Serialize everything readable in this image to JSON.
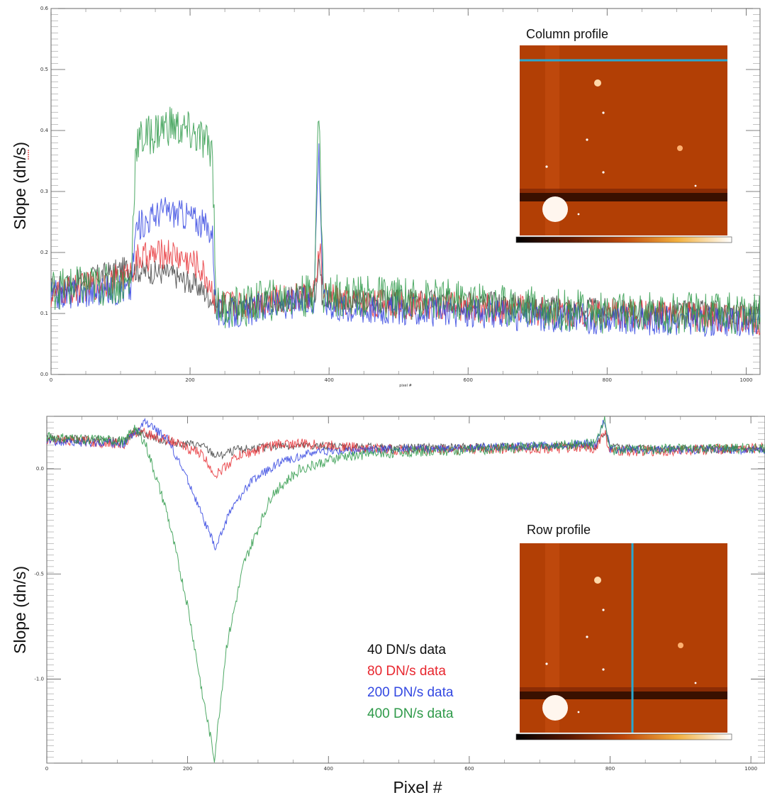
{
  "chart_data": [
    {
      "type": "line",
      "panel": "top",
      "xlabel": "pixel #",
      "ylabel": "Slope (dn/s)",
      "xlim": [
        0,
        1020
      ],
      "ylim": [
        0.0,
        0.6
      ],
      "x_ticks": [
        "0",
        "200",
        "400",
        "600",
        "800",
        "1000"
      ],
      "y_ticks": [
        "0.0",
        "0.1",
        "0.2",
        "0.3",
        "0.4",
        "0.5",
        "0.6"
      ],
      "inset_title": "Column profile",
      "series": [
        {
          "name": "40 DN/s data",
          "color": "#444444",
          "points": [
            [
              0,
              0.14
            ],
            [
              110,
              0.175
            ],
            [
              125,
              0.17
            ],
            [
              170,
              0.165
            ],
            [
              210,
              0.145
            ],
            [
              235,
              0.12
            ],
            [
              240,
              0.11
            ],
            [
              280,
              0.115
            ],
            [
              300,
              0.12
            ],
            [
              380,
              0.13
            ],
            [
              385,
              0.2
            ],
            [
              390,
              0.13
            ],
            [
              420,
              0.12
            ],
            [
              600,
              0.12
            ],
            [
              800,
              0.105
            ],
            [
              1020,
              0.1
            ]
          ],
          "noise": 0.02
        },
        {
          "name": "80 DN/s data",
          "color": "#e8353a",
          "points": [
            [
              0,
              0.13
            ],
            [
              110,
              0.16
            ],
            [
              125,
              0.19
            ],
            [
              170,
              0.2
            ],
            [
              210,
              0.18
            ],
            [
              228,
              0.15
            ],
            [
              238,
              0.115
            ],
            [
              280,
              0.115
            ],
            [
              300,
              0.12
            ],
            [
              380,
              0.13
            ],
            [
              386,
              0.22
            ],
            [
              392,
              0.13
            ],
            [
              420,
              0.12
            ],
            [
              600,
              0.11
            ],
            [
              800,
              0.1
            ],
            [
              1020,
              0.09
            ]
          ],
          "noise": 0.025
        },
        {
          "name": "200 DN/s data",
          "color": "#3244e0",
          "points": [
            [
              0,
              0.13
            ],
            [
              115,
              0.14
            ],
            [
              122,
              0.24
            ],
            [
              160,
              0.27
            ],
            [
              200,
              0.26
            ],
            [
              232,
              0.235
            ],
            [
              238,
              0.1
            ],
            [
              280,
              0.1
            ],
            [
              300,
              0.11
            ],
            [
              378,
              0.12
            ],
            [
              385,
              0.38
            ],
            [
              392,
              0.12
            ],
            [
              420,
              0.11
            ],
            [
              600,
              0.1
            ],
            [
              800,
              0.09
            ],
            [
              1020,
              0.085
            ]
          ],
          "noise": 0.025
        },
        {
          "name": "400 DN/s data",
          "color": "#2f9a4a",
          "points": [
            [
              0,
              0.14
            ],
            [
              115,
              0.15
            ],
            [
              122,
              0.38
            ],
            [
              170,
              0.41
            ],
            [
              210,
              0.39
            ],
            [
              232,
              0.37
            ],
            [
              238,
              0.11
            ],
            [
              280,
              0.11
            ],
            [
              300,
              0.12
            ],
            [
              378,
              0.13
            ],
            [
              385,
              0.44
            ],
            [
              392,
              0.13
            ],
            [
              420,
              0.13
            ],
            [
              600,
              0.12
            ],
            [
              800,
              0.1
            ],
            [
              1020,
              0.1
            ]
          ],
          "noise": 0.035
        }
      ]
    },
    {
      "type": "line",
      "panel": "bottom",
      "xlabel": "Pixel #",
      "ylabel": "Slope (dn/s)",
      "xlim": [
        0,
        1020
      ],
      "ylim": [
        -1.4,
        0.25
      ],
      "x_ticks": [
        "0",
        "200",
        "400",
        "600",
        "800",
        "1000"
      ],
      "y_ticks": [
        "0.0",
        "-0.5",
        "-1.0"
      ],
      "y_tick_values": [
        0.0,
        -0.5,
        -1.0
      ],
      "inset_title": "Row profile",
      "series": [
        {
          "name": "40 DN/s data",
          "color": "#444444",
          "points": [
            [
              0,
              0.15
            ],
            [
              110,
              0.13
            ],
            [
              125,
              0.18
            ],
            [
              170,
              0.13
            ],
            [
              220,
              0.11
            ],
            [
              240,
              0.06
            ],
            [
              270,
              0.09
            ],
            [
              330,
              0.11
            ],
            [
              500,
              0.1
            ],
            [
              780,
              0.11
            ],
            [
              792,
              0.17
            ],
            [
              800,
              0.1
            ],
            [
              1020,
              0.09
            ]
          ],
          "noise": 0.02
        },
        {
          "name": "80 DN/s data",
          "color": "#e8353a",
          "points": [
            [
              0,
              0.14
            ],
            [
              110,
              0.12
            ],
            [
              128,
              0.18
            ],
            [
              170,
              0.14
            ],
            [
              220,
              0.07
            ],
            [
              240,
              -0.03
            ],
            [
              270,
              0.06
            ],
            [
              330,
              0.12
            ],
            [
              360,
              0.12
            ],
            [
              500,
              0.09
            ],
            [
              780,
              0.1
            ],
            [
              792,
              0.18
            ],
            [
              800,
              0.08
            ],
            [
              1020,
              0.1
            ]
          ],
          "noise": 0.025
        },
        {
          "name": "200 DN/s data",
          "color": "#3244e0",
          "points": [
            [
              0,
              0.13
            ],
            [
              110,
              0.12
            ],
            [
              140,
              0.22
            ],
            [
              170,
              0.15
            ],
            [
              200,
              -0.05
            ],
            [
              220,
              -0.22
            ],
            [
              240,
              -0.38
            ],
            [
              260,
              -0.2
            ],
            [
              290,
              -0.06
            ],
            [
              330,
              0.03
            ],
            [
              380,
              0.08
            ],
            [
              450,
              0.09
            ],
            [
              600,
              0.1
            ],
            [
              780,
              0.12
            ],
            [
              792,
              0.24
            ],
            [
              800,
              0.09
            ],
            [
              1020,
              0.09
            ]
          ],
          "noise": 0.02
        },
        {
          "name": "400 DN/s data",
          "color": "#2f9a4a",
          "points": [
            [
              0,
              0.15
            ],
            [
              110,
              0.13
            ],
            [
              125,
              0.2
            ],
            [
              140,
              0.12
            ],
            [
              170,
              -0.2
            ],
            [
              200,
              -0.65
            ],
            [
              220,
              -1.05
            ],
            [
              238,
              -1.38
            ],
            [
              255,
              -0.85
            ],
            [
              280,
              -0.45
            ],
            [
              320,
              -0.12
            ],
            [
              360,
              0.0
            ],
            [
              420,
              0.06
            ],
            [
              500,
              0.08
            ],
            [
              600,
              0.09
            ],
            [
              780,
              0.12
            ],
            [
              792,
              0.25
            ],
            [
              800,
              0.09
            ],
            [
              1020,
              0.1
            ]
          ],
          "noise": 0.025
        }
      ]
    }
  ],
  "legend": {
    "items": [
      {
        "label": "40 DN/s data",
        "color": "#111111"
      },
      {
        "label": "80 DN/s data",
        "color": "#e8262e"
      },
      {
        "label": "200 DN/s data",
        "color": "#3348e2"
      },
      {
        "label": "400 DN/s data",
        "color": "#2f9a4a"
      }
    ]
  },
  "colors": {
    "inset_background": "#b23f05",
    "profile_line": "#29a7cf"
  }
}
